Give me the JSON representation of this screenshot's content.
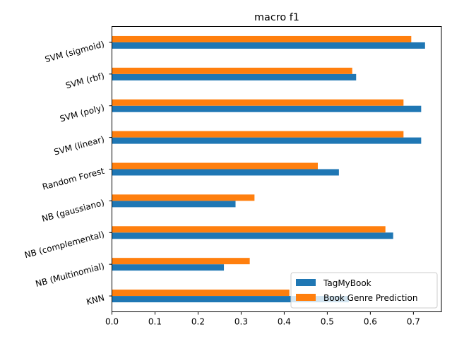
{
  "chart_data": {
    "type": "bar",
    "orientation": "horizontal",
    "title": "macro f1",
    "xlabel": "",
    "ylabel": "",
    "xlim": [
      0,
      0.765
    ],
    "xticks": [
      "0.0",
      "0.1",
      "0.2",
      "0.3",
      "0.4",
      "0.5",
      "0.6",
      "0.7"
    ],
    "categories": [
      "KNN",
      "NB (Multinomial)",
      "NB (complemental)",
      "NB (gaussiano)",
      "Random Forest",
      "SVM (linear)",
      "SVM (poly)",
      "SVM (rbf)",
      "SVM (sigmoid)"
    ],
    "series": [
      {
        "name": "TagMyBook",
        "color": "#1f77b4",
        "values": [
          0.55,
          0.26,
          0.653,
          0.287,
          0.527,
          0.718,
          0.718,
          0.567,
          0.727
        ]
      },
      {
        "name": "Book Genre Prediction",
        "color": "#ff7f0e",
        "values": [
          0.412,
          0.32,
          0.635,
          0.331,
          0.478,
          0.677,
          0.677,
          0.558,
          0.695
        ]
      }
    ],
    "legend_position": "lower right",
    "grid": false
  }
}
